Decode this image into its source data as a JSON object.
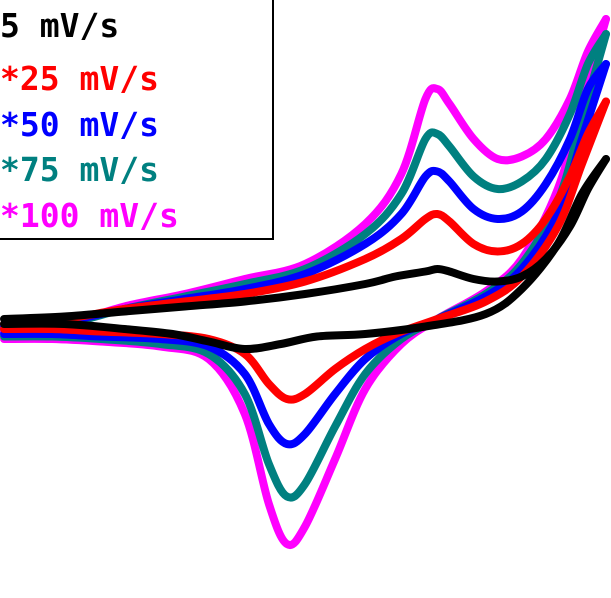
{
  "chart_data": {
    "type": "line",
    "title": "",
    "xlabel": "",
    "ylabel": "",
    "grid": false,
    "legend_position": "top-left",
    "x_range": [
      0,
      100
    ],
    "y_range": [
      -100,
      100
    ],
    "series": [
      {
        "name": "5 mV/s",
        "legend_label": "5 mV/s",
        "color": "#000000",
        "forward": [
          [
            0,
            -2
          ],
          [
            10,
            -1
          ],
          [
            20,
            1
          ],
          [
            30,
            3
          ],
          [
            40,
            5
          ],
          [
            50,
            8
          ],
          [
            60,
            12
          ],
          [
            65,
            15
          ],
          [
            70,
            17
          ],
          [
            72,
            18
          ],
          [
            74,
            17
          ],
          [
            78,
            14
          ],
          [
            82,
            13
          ],
          [
            86,
            15
          ],
          [
            90,
            22
          ],
          [
            94,
            35
          ],
          [
            97,
            50
          ],
          [
            100,
            62
          ]
        ],
        "reverse": [
          [
            100,
            62
          ],
          [
            96,
            48
          ],
          [
            92,
            28
          ],
          [
            86,
            10
          ],
          [
            80,
            0
          ],
          [
            70,
            -5
          ],
          [
            60,
            -8
          ],
          [
            52,
            -9
          ],
          [
            46,
            -12
          ],
          [
            40,
            -14
          ],
          [
            34,
            -11
          ],
          [
            28,
            -8
          ],
          [
            20,
            -6
          ],
          [
            10,
            -4
          ],
          [
            0,
            -4
          ]
        ]
      },
      {
        "name": "*25 mV/s",
        "legend_label": "*25 mV/s",
        "color": "#ff0000",
        "forward": [
          [
            0,
            -4
          ],
          [
            10,
            -2
          ],
          [
            20,
            2
          ],
          [
            30,
            5
          ],
          [
            40,
            8
          ],
          [
            50,
            13
          ],
          [
            60,
            22
          ],
          [
            66,
            30
          ],
          [
            70,
            38
          ],
          [
            72,
            40
          ],
          [
            74,
            37
          ],
          [
            78,
            28
          ],
          [
            82,
            25
          ],
          [
            86,
            28
          ],
          [
            90,
            38
          ],
          [
            94,
            55
          ],
          [
            97,
            72
          ],
          [
            100,
            85
          ]
        ],
        "reverse": [
          [
            100,
            85
          ],
          [
            96,
            60
          ],
          [
            92,
            35
          ],
          [
            86,
            15
          ],
          [
            80,
            5
          ],
          [
            72,
            -2
          ],
          [
            65,
            -8
          ],
          [
            60,
            -14
          ],
          [
            55,
            -22
          ],
          [
            50,
            -32
          ],
          [
            47,
            -34
          ],
          [
            44,
            -28
          ],
          [
            40,
            -16
          ],
          [
            34,
            -10
          ],
          [
            26,
            -8
          ],
          [
            16,
            -7
          ],
          [
            8,
            -6
          ],
          [
            0,
            -6
          ]
        ]
      },
      {
        "name": "*50 mV/s",
        "legend_label": "*50 mV/s",
        "color": "#0000ff",
        "forward": [
          [
            0,
            -5
          ],
          [
            10,
            -3
          ],
          [
            20,
            2
          ],
          [
            30,
            6
          ],
          [
            40,
            10
          ],
          [
            50,
            16
          ],
          [
            60,
            28
          ],
          [
            66,
            40
          ],
          [
            70,
            55
          ],
          [
            72,
            57
          ],
          [
            74,
            53
          ],
          [
            78,
            42
          ],
          [
            82,
            38
          ],
          [
            86,
            41
          ],
          [
            90,
            52
          ],
          [
            94,
            70
          ],
          [
            97,
            90
          ],
          [
            100,
            100
          ]
        ],
        "reverse": [
          [
            100,
            100
          ],
          [
            96,
            70
          ],
          [
            92,
            40
          ],
          [
            86,
            18
          ],
          [
            80,
            7
          ],
          [
            72,
            -2
          ],
          [
            66,
            -8
          ],
          [
            60,
            -18
          ],
          [
            55,
            -32
          ],
          [
            50,
            -48
          ],
          [
            47,
            -52
          ],
          [
            44,
            -44
          ],
          [
            40,
            -24
          ],
          [
            34,
            -13
          ],
          [
            26,
            -10
          ],
          [
            16,
            -9
          ],
          [
            8,
            -8
          ],
          [
            0,
            -8
          ]
        ]
      },
      {
        "name": "*75 mV/s",
        "legend_label": "*75 mV/s",
        "color": "#008080",
        "forward": [
          [
            0,
            -6
          ],
          [
            10,
            -4
          ],
          [
            20,
            2
          ],
          [
            30,
            7
          ],
          [
            40,
            12
          ],
          [
            50,
            18
          ],
          [
            60,
            32
          ],
          [
            66,
            48
          ],
          [
            70,
            70
          ],
          [
            72,
            72
          ],
          [
            74,
            67
          ],
          [
            78,
            55
          ],
          [
            82,
            50
          ],
          [
            86,
            53
          ],
          [
            90,
            62
          ],
          [
            94,
            80
          ],
          [
            97,
            100
          ],
          [
            100,
            112
          ]
        ],
        "reverse": [
          [
            100,
            112
          ],
          [
            96,
            78
          ],
          [
            92,
            45
          ],
          [
            86,
            20
          ],
          [
            80,
            8
          ],
          [
            72,
            -2
          ],
          [
            66,
            -10
          ],
          [
            60,
            -24
          ],
          [
            55,
            -45
          ],
          [
            50,
            -68
          ],
          [
            47,
            -73
          ],
          [
            44,
            -60
          ],
          [
            40,
            -32
          ],
          [
            34,
            -16
          ],
          [
            26,
            -12
          ],
          [
            16,
            -10
          ],
          [
            8,
            -9
          ],
          [
            0,
            -9
          ]
        ]
      },
      {
        "name": "*100 mV/s",
        "legend_label": "*100 mV/s",
        "color": "#ff00ff",
        "forward": [
          [
            0,
            -7
          ],
          [
            10,
            -4
          ],
          [
            20,
            3
          ],
          [
            30,
            8
          ],
          [
            40,
            14
          ],
          [
            50,
            20
          ],
          [
            60,
            36
          ],
          [
            66,
            56
          ],
          [
            70,
            86
          ],
          [
            72,
            90
          ],
          [
            74,
            84
          ],
          [
            78,
            70
          ],
          [
            82,
            62
          ],
          [
            86,
            63
          ],
          [
            90,
            70
          ],
          [
            94,
            86
          ],
          [
            97,
            105
          ],
          [
            100,
            118
          ]
        ],
        "reverse": [
          [
            100,
            118
          ],
          [
            96,
            84
          ],
          [
            92,
            50
          ],
          [
            86,
            22
          ],
          [
            80,
            9
          ],
          [
            72,
            -2
          ],
          [
            66,
            -12
          ],
          [
            60,
            -30
          ],
          [
            55,
            -58
          ],
          [
            50,
            -85
          ],
          [
            47,
            -92
          ],
          [
            44,
            -76
          ],
          [
            40,
            -40
          ],
          [
            34,
            -18
          ],
          [
            26,
            -13
          ],
          [
            16,
            -11
          ],
          [
            8,
            -10
          ],
          [
            0,
            -10
          ]
        ]
      }
    ]
  }
}
